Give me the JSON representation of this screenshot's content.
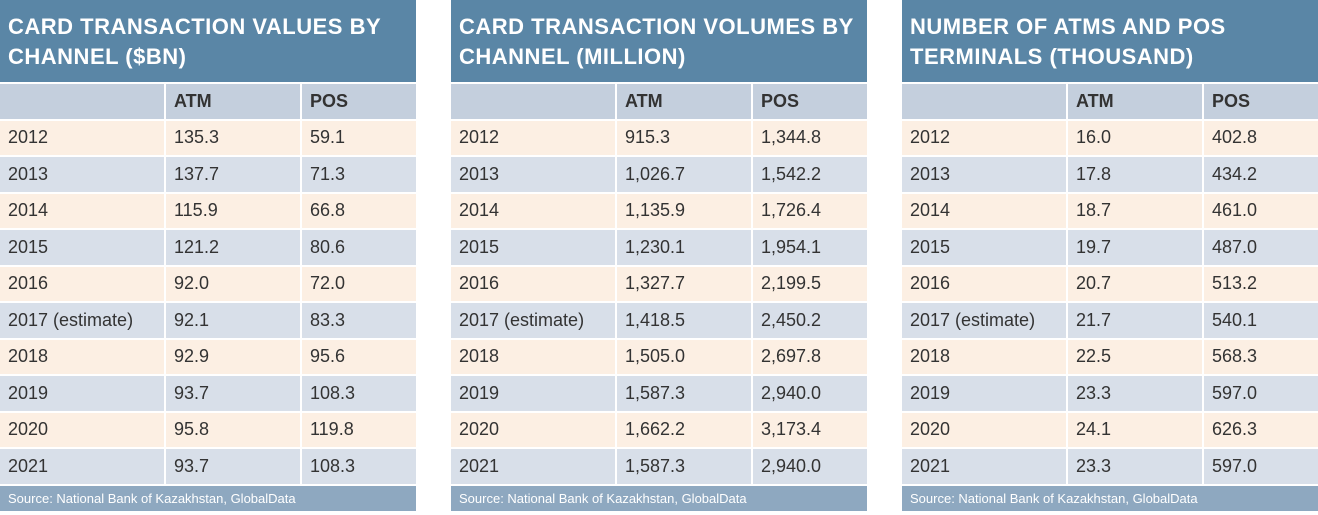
{
  "tables": [
    {
      "title": "Card transaction values by channel ($bn)",
      "columns": [
        "ATM",
        "POS"
      ],
      "rows": [
        [
          "2012",
          "135.3",
          "59.1"
        ],
        [
          "2013",
          "137.7",
          "71.3"
        ],
        [
          "2014",
          "115.9",
          "66.8"
        ],
        [
          "2015",
          "121.2",
          "80.6"
        ],
        [
          "2016",
          "92.0",
          "72.0"
        ],
        [
          "2017 (estimate)",
          "92.1",
          "83.3"
        ],
        [
          "2018",
          "92.9",
          "95.6"
        ],
        [
          "2019",
          "93.7",
          "108.3"
        ],
        [
          "2020",
          "95.8",
          "119.8"
        ],
        [
          "2021",
          "93.7",
          "108.3"
        ]
      ],
      "source": "Source: National Bank of Kazakhstan, GlobalData"
    },
    {
      "title": "Card transaction volumes by channel (million)",
      "columns": [
        "ATM",
        "POS"
      ],
      "rows": [
        [
          "2012",
          "915.3",
          "1,344.8"
        ],
        [
          "2013",
          "1,026.7",
          "1,542.2"
        ],
        [
          "2014",
          "1,135.9",
          "1,726.4"
        ],
        [
          "2015",
          "1,230.1",
          "1,954.1"
        ],
        [
          "2016",
          "1,327.7",
          "2,199.5"
        ],
        [
          "2017 (estimate)",
          "1,418.5",
          "2,450.2"
        ],
        [
          "2018",
          "1,505.0",
          "2,697.8"
        ],
        [
          "2019",
          "1,587.3",
          "2,940.0"
        ],
        [
          "2020",
          "1,662.2",
          "3,173.4"
        ],
        [
          "2021",
          "1,587.3",
          "2,940.0"
        ]
      ],
      "source": "Source: National Bank of Kazakhstan, GlobalData"
    },
    {
      "title": "Number of ATMs and POS terminals (thousand)",
      "columns": [
        "ATM",
        "POS"
      ],
      "rows": [
        [
          "2012",
          "16.0",
          "402.8"
        ],
        [
          "2013",
          "17.8",
          "434.2"
        ],
        [
          "2014",
          "18.7",
          "461.0"
        ],
        [
          "2015",
          "19.7",
          "487.0"
        ],
        [
          "2016",
          "20.7",
          "513.2"
        ],
        [
          "2017 (estimate)",
          "21.7",
          "540.1"
        ],
        [
          "2018",
          "22.5",
          "568.3"
        ],
        [
          "2019",
          "23.3",
          "597.0"
        ],
        [
          "2020",
          "24.1",
          "626.3"
        ],
        [
          "2021",
          "23.3",
          "597.0"
        ]
      ],
      "source": "Source: National Bank of Kazakhstan, GlobalData"
    }
  ]
}
